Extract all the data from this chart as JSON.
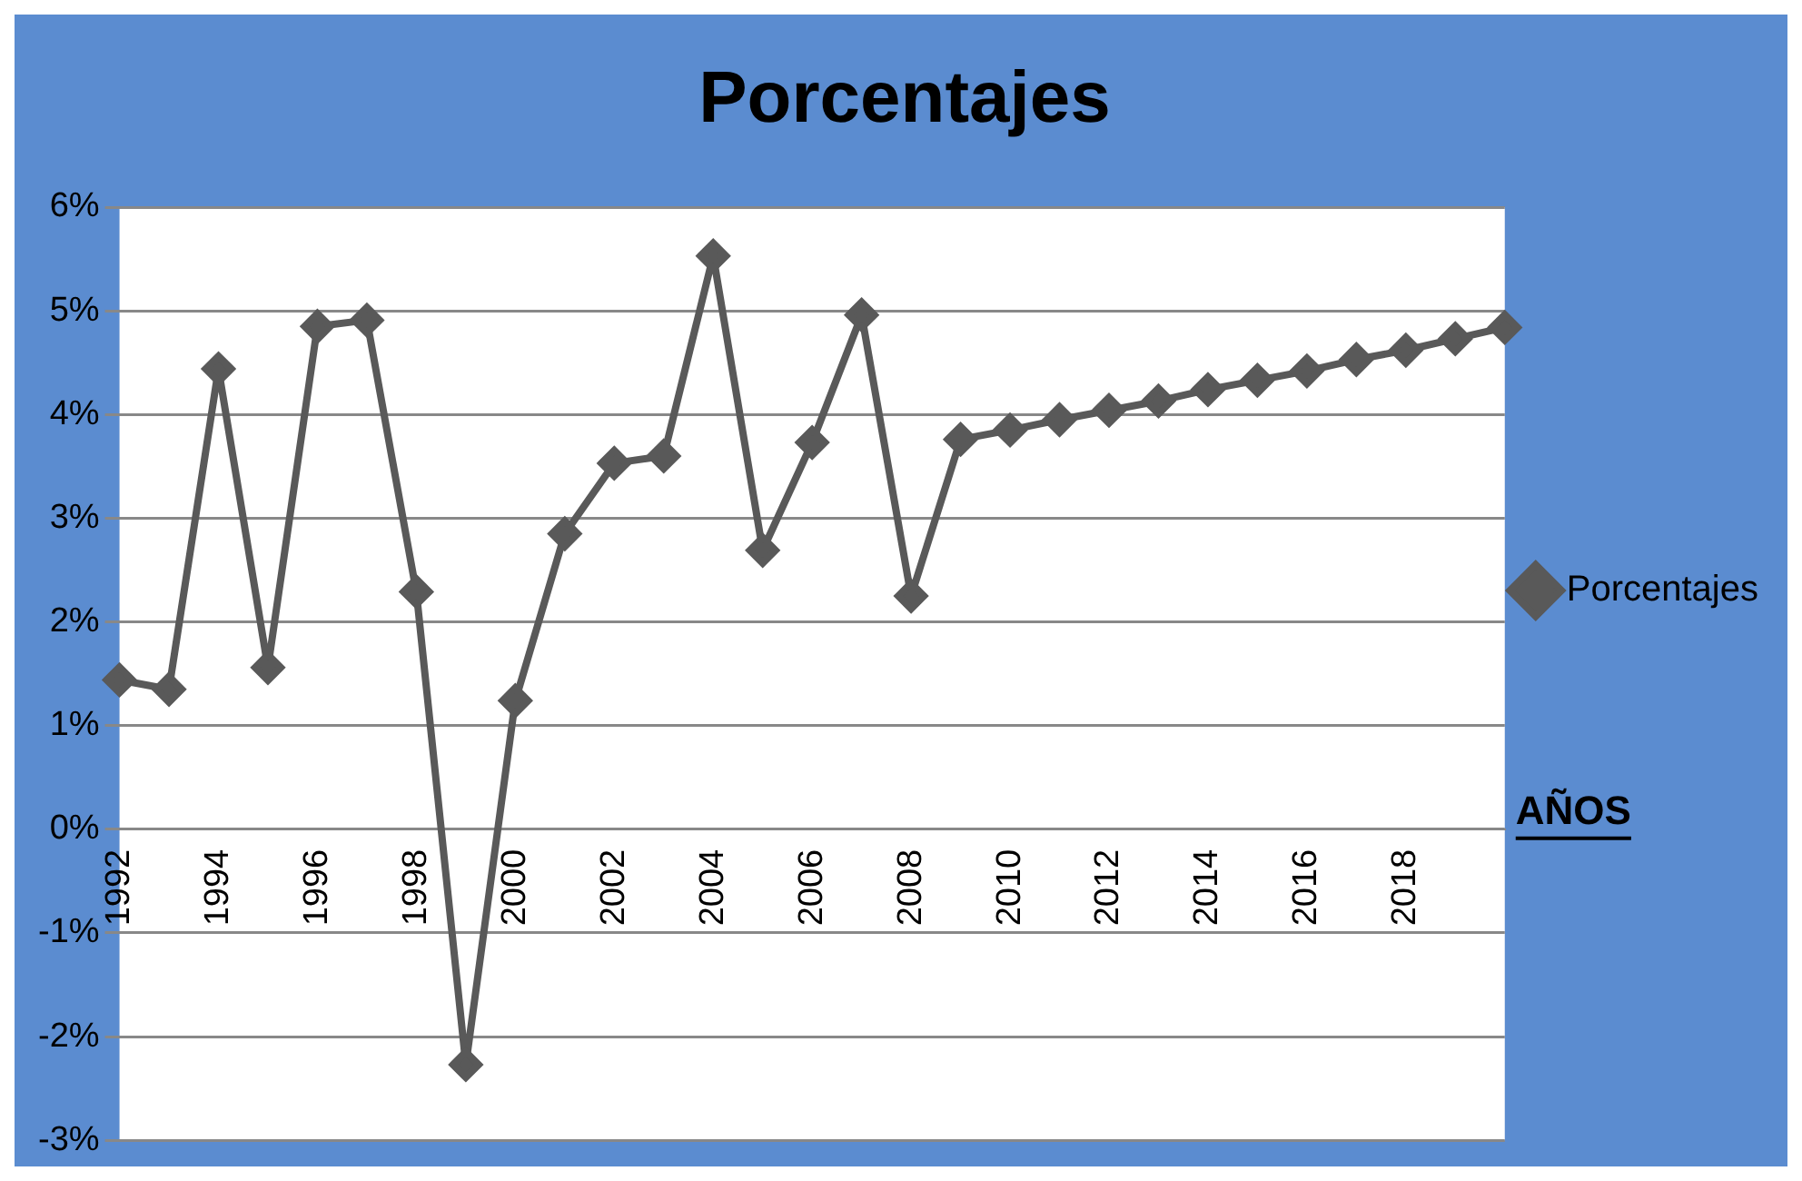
{
  "chart_data": {
    "type": "line",
    "title": "Porcentajes",
    "xlabel": "AÑOS",
    "categories": [
      "1992",
      null,
      "1994",
      null,
      "1996",
      null,
      "1998",
      null,
      "2000",
      null,
      "2002",
      null,
      "2004",
      null,
      "2006",
      null,
      "2008",
      null,
      "2010",
      null,
      "2012",
      null,
      "2014",
      null,
      "2016",
      null,
      "2018",
      null,
      null
    ],
    "series": [
      {
        "name": "Porcentajes",
        "color": "#595959",
        "values": [
          1.44,
          1.35,
          4.44,
          1.56,
          4.85,
          4.91,
          2.29,
          -2.27,
          1.24,
          2.85,
          3.53,
          3.6,
          5.53,
          2.69,
          3.73,
          4.96,
          2.25,
          3.76,
          3.85,
          3.95,
          4.04,
          4.13,
          4.24,
          4.33,
          4.42,
          4.53,
          4.62,
          4.73,
          4.84
        ]
      }
    ],
    "ylim": [
      -3,
      6
    ],
    "yticks": [
      {
        "value": -3,
        "label": "-3%"
      },
      {
        "value": -2,
        "label": "-2%"
      },
      {
        "value": -1,
        "label": "-1%"
      },
      {
        "value": 0,
        "label": "0%"
      },
      {
        "value": 1,
        "label": "1%"
      },
      {
        "value": 2,
        "label": "2%"
      },
      {
        "value": 3,
        "label": "3%"
      },
      {
        "value": 4,
        "label": "4%"
      },
      {
        "value": 5,
        "label": "5%"
      },
      {
        "value": 6,
        "label": "6%"
      }
    ],
    "grid": "y",
    "legend": "right",
    "marker": "diamond",
    "line_style": "solid"
  }
}
